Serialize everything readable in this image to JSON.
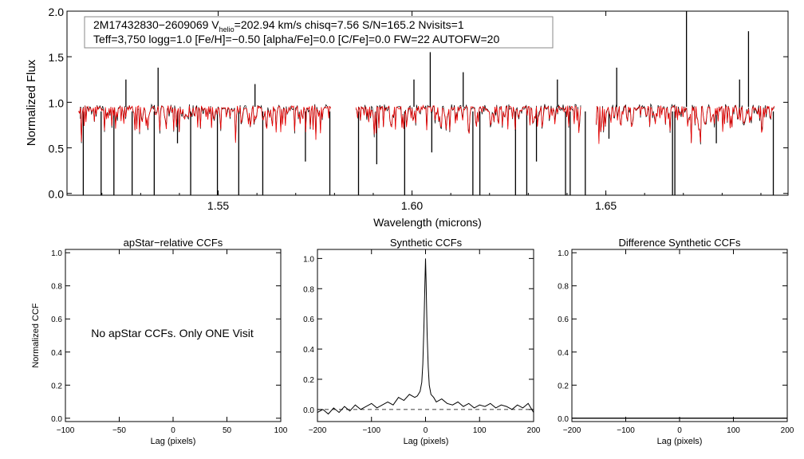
{
  "colors": {
    "background": "#ffffff",
    "observed": "#000000",
    "model": "#ee0000",
    "axis": "#000000"
  },
  "chart_data": [
    {
      "type": "line",
      "panel": "spectrum",
      "title": "",
      "xlabel": "Wavelength (microns)",
      "ylabel": "Normalized Flux",
      "xlim": [
        1.511,
        1.697
      ],
      "ylim": [
        -0.02,
        2.0
      ],
      "x_ticks": [
        "1.55",
        "1.60",
        "1.65"
      ],
      "x_tick_values": [
        1.55,
        1.6,
        1.65
      ],
      "y_ticks": [
        "0.0",
        "0.5",
        "1.0",
        "1.5",
        "2.0"
      ],
      "y_tick_values": [
        0.0,
        0.5,
        1.0,
        1.5,
        2.0
      ],
      "info_box": {
        "line1_prefix": "2M17432830−2609069  V",
        "line1_sub": "helio",
        "line1_suffix": "=202.94 km/s  chisq=7.56  S/N=165.2  Nvisits=1",
        "line2": "Teff=3,750 logg=1.0 [Fe/H]=−0.50 [alpha/Fe]=0.0 [C/Fe]=0.0 FW=22 AUTOFW=20"
      },
      "chips": [
        [
          1.514,
          1.579
        ],
        [
          1.5855,
          1.6435
        ],
        [
          1.6475,
          1.6935
        ]
      ],
      "continuum": 0.95,
      "series": [],
      "emission_lines": [
        {
          "x": 1.5145,
          "y": 0.82
        },
        {
          "x": 1.5345,
          "y": 1.38
        },
        {
          "x": 1.5262,
          "y": 1.25
        },
        {
          "x": 1.5595,
          "y": 1.2
        },
        {
          "x": 1.6005,
          "y": 1.25
        },
        {
          "x": 1.6047,
          "y": 1.55
        },
        {
          "x": 1.6132,
          "y": 1.33
        },
        {
          "x": 1.6375,
          "y": 1.25
        },
        {
          "x": 1.6528,
          "y": 1.38
        },
        {
          "x": 1.6708,
          "y": 2.0
        },
        {
          "x": 1.6868,
          "y": 1.78
        },
        {
          "x": 1.6845,
          "y": 1.25
        }
      ],
      "absorption_lines": [
        {
          "x": 1.5152,
          "y": -0.02
        },
        {
          "x": 1.5198,
          "y": -0.02
        },
        {
          "x": 1.5231,
          "y": -0.02
        },
        {
          "x": 1.5278,
          "y": -0.02
        },
        {
          "x": 1.5335,
          "y": -0.02
        },
        {
          "x": 1.5395,
          "y": 0.55
        },
        {
          "x": 1.5429,
          "y": -0.02
        },
        {
          "x": 1.5498,
          "y": -0.02
        },
        {
          "x": 1.5553,
          "y": -0.02
        },
        {
          "x": 1.5615,
          "y": -0.02
        },
        {
          "x": 1.5725,
          "y": 0.35
        },
        {
          "x": 1.5788,
          "y": -0.02
        },
        {
          "x": 1.5862,
          "y": -0.02
        },
        {
          "x": 1.5909,
          "y": 0.32
        },
        {
          "x": 1.5981,
          "y": -0.02
        },
        {
          "x": 1.6051,
          "y": 0.45
        },
        {
          "x": 1.6157,
          "y": -0.02
        },
        {
          "x": 1.6175,
          "y": -0.02
        },
        {
          "x": 1.6267,
          "y": -0.02
        },
        {
          "x": 1.6296,
          "y": -0.02
        },
        {
          "x": 1.6321,
          "y": 0.35
        },
        {
          "x": 1.6396,
          "y": -0.02
        },
        {
          "x": 1.6408,
          "y": -0.02
        },
        {
          "x": 1.6447,
          "y": -0.02
        },
        {
          "x": 1.6508,
          "y": 0.6
        },
        {
          "x": 1.6672,
          "y": -0.02
        },
        {
          "x": 1.6678,
          "y": -0.02
        },
        {
          "x": 1.6785,
          "y": 0.55
        },
        {
          "x": 1.6932,
          "y": -0.02
        }
      ]
    },
    {
      "type": "line",
      "panel": "apstar-ccf",
      "title": "apStar−relative CCFs",
      "xlabel": "Lag (pixels)",
      "ylabel": "Normalized CCF",
      "xlim": [
        -100,
        100
      ],
      "ylim": [
        -0.02,
        1.02
      ],
      "x_ticks": [
        "−100",
        "−50",
        "0",
        "50",
        "100"
      ],
      "x_tick_values": [
        -100,
        -50,
        0,
        50,
        100
      ],
      "y_ticks": [
        "0.0",
        "0.2",
        "0.4",
        "0.6",
        "0.8",
        "1.0"
      ],
      "y_tick_values": [
        0,
        0.2,
        0.4,
        0.6,
        0.8,
        1.0
      ],
      "annotation": "No apStar CCFs.  Only ONE Visit",
      "series": []
    },
    {
      "type": "line",
      "panel": "synthetic-ccf",
      "title": "Synthetic CCFs",
      "xlabel": "Lag (pixels)",
      "ylabel": "",
      "xlim": [
        -200,
        200
      ],
      "ylim": [
        -0.08,
        1.06
      ],
      "x_ticks": [
        "−200",
        "−100",
        "0",
        "100",
        "200"
      ],
      "x_tick_values": [
        -200,
        -100,
        0,
        100,
        200
      ],
      "y_ticks": [
        "0.0",
        "0.2",
        "0.4",
        "0.6",
        "0.8",
        "1.0"
      ],
      "y_tick_values": [
        0,
        0.2,
        0.4,
        0.6,
        0.8,
        1.0
      ],
      "zero_line": true,
      "series": [
        {
          "x": [
            -200,
            -190,
            -180,
            -170,
            -160,
            -150,
            -140,
            -130,
            -120,
            -110,
            -100,
            -90,
            -80,
            -70,
            -60,
            -50,
            -40,
            -30,
            -20,
            -15,
            -10,
            -7,
            -5,
            -3,
            -1,
            0,
            1,
            3,
            5,
            7,
            10,
            15,
            20,
            30,
            40,
            50,
            60,
            70,
            80,
            90,
            100,
            110,
            120,
            130,
            140,
            150,
            160,
            170,
            180,
            190,
            200
          ],
          "values": [
            -0.02,
            0.0,
            -0.03,
            0.01,
            -0.02,
            0.02,
            -0.01,
            0.03,
            0.0,
            0.02,
            0.04,
            0.01,
            0.03,
            0.05,
            0.03,
            0.08,
            0.06,
            0.1,
            0.08,
            0.09,
            0.12,
            0.18,
            0.3,
            0.55,
            0.85,
            1.0,
            0.85,
            0.5,
            0.28,
            0.16,
            0.1,
            0.08,
            0.05,
            0.07,
            0.04,
            0.03,
            0.05,
            0.02,
            0.04,
            0.01,
            0.03,
            0.02,
            0.04,
            0.01,
            0.03,
            0.02,
            0.0,
            0.03,
            0.01,
            0.04,
            -0.02
          ]
        }
      ]
    },
    {
      "type": "line",
      "panel": "difference-ccf",
      "title": "Difference Synthetic CCFs",
      "xlabel": "Lag (pixels)",
      "ylabel": "",
      "xlim": [
        -200,
        200
      ],
      "ylim": [
        -0.02,
        1.02
      ],
      "x_ticks": [
        "−200",
        "−100",
        "0",
        "100",
        "200"
      ],
      "x_tick_values": [
        -200,
        -100,
        0,
        100,
        200
      ],
      "y_ticks": [
        "0.0",
        "0.2",
        "0.4",
        "0.6",
        "0.8",
        "1.0"
      ],
      "y_tick_values": [
        0,
        0.2,
        0.4,
        0.6,
        0.8,
        1.0
      ],
      "series": [
        {
          "x": [
            -200,
            200
          ],
          "values": [
            0.0,
            0.0
          ]
        }
      ]
    }
  ]
}
